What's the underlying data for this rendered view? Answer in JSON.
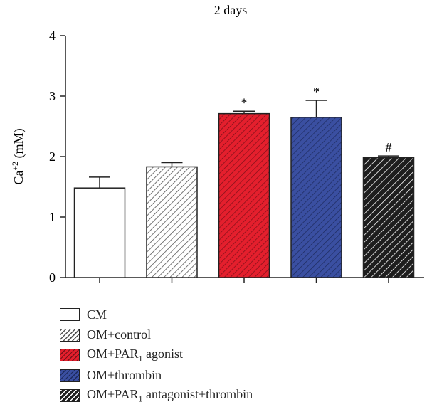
{
  "chart_data": {
    "type": "bar",
    "title": "2 days",
    "ylabel": "Ca+2 (mM)",
    "xlabel": "",
    "ylim": [
      0,
      4
    ],
    "yticks": [
      0,
      1,
      2,
      3,
      4
    ],
    "series": [
      {
        "name": "CM",
        "value": 1.48,
        "error": 0.18,
        "marker": "",
        "fill": "#ffffff",
        "pattern": "none"
      },
      {
        "name": "OM+control",
        "value": 1.83,
        "error": 0.07,
        "marker": "",
        "fill": "#ffffff",
        "pattern": "hatch-grey"
      },
      {
        "name": "OM+PAR1 agonist",
        "value": 2.71,
        "error": 0.04,
        "marker": "*",
        "fill": "#e41f2d",
        "pattern": "hatch-dark"
      },
      {
        "name": "OM+thrombin",
        "value": 2.65,
        "error": 0.28,
        "marker": "*",
        "fill": "#3a4fa1",
        "pattern": "hatch-dark"
      },
      {
        "name": "OM+PAR1 antagonist+thrombin",
        "value": 1.98,
        "error": 0.03,
        "marker": "#",
        "fill": "#1e1e1e",
        "pattern": "hatch-white"
      }
    ]
  },
  "legend": {
    "items": [
      {
        "pre": "CM",
        "sub": "",
        "post": ""
      },
      {
        "pre": "OM+control",
        "sub": "",
        "post": ""
      },
      {
        "pre": "OM+PAR",
        "sub": "1",
        "post": " agonist"
      },
      {
        "pre": "OM+thrombin",
        "sub": "",
        "post": ""
      },
      {
        "pre": "OM+PAR",
        "sub": "1",
        "post": " antagonist+thrombin"
      }
    ]
  }
}
